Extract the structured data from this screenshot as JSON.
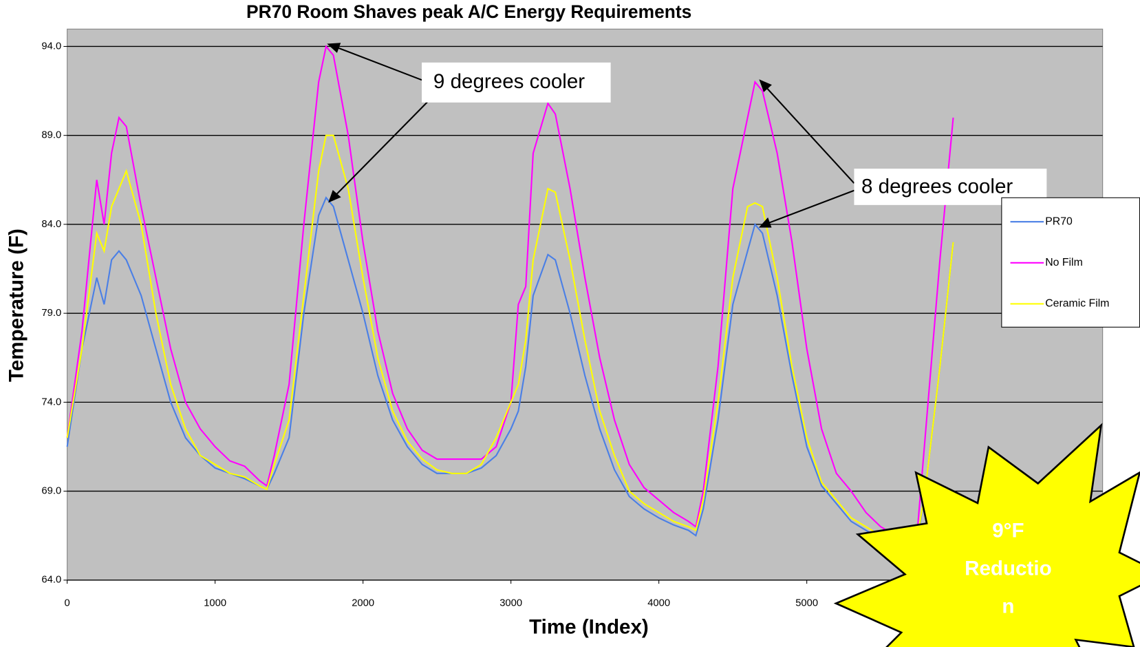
{
  "chart_data": {
    "type": "line",
    "title": "PR70 Room Shaves peak A/C Energy Requirements",
    "xlabel": "Time (Index)",
    "ylabel": "Temperature (F)",
    "x": [
      0,
      100,
      200,
      250,
      300,
      350,
      400,
      500,
      600,
      700,
      800,
      900,
      1000,
      1100,
      1200,
      1300,
      1350,
      1400,
      1500,
      1600,
      1700,
      1750,
      1800,
      1900,
      2000,
      2100,
      2200,
      2300,
      2400,
      2500,
      2600,
      2700,
      2800,
      2900,
      3000,
      3050,
      3100,
      3150,
      3250,
      3300,
      3400,
      3500,
      3600,
      3700,
      3800,
      3900,
      4000,
      4100,
      4200,
      4250,
      4300,
      4400,
      4500,
      4600,
      4650,
      4700,
      4800,
      4900,
      5000,
      5100,
      5200,
      5300,
      5400,
      5500,
      5600,
      5700,
      5750,
      5800,
      5900,
      5990
    ],
    "series": [
      {
        "name": "PR70",
        "color": "#4a7fe6",
        "values": [
          71.5,
          77,
          81,
          79.5,
          82,
          82.5,
          82,
          80,
          77,
          74,
          72,
          71,
          70.3,
          70,
          69.7,
          69.3,
          69.1,
          70,
          72,
          79,
          84.5,
          85.5,
          85,
          82,
          79,
          75.5,
          73,
          71.5,
          70.5,
          70,
          70,
          70,
          70.3,
          71,
          72.5,
          73.5,
          76,
          80,
          82.3,
          82,
          79,
          75.5,
          72.5,
          70.2,
          68.7,
          68,
          67.5,
          67.1,
          66.8,
          66.5,
          68,
          73,
          79.5,
          82.5,
          84,
          83.5,
          80,
          75.5,
          71.5,
          69.3,
          68.3,
          67.3,
          66.8,
          66.3,
          65.8,
          65.8,
          66.3,
          69,
          76,
          83
        ]
      },
      {
        "name": "No Film",
        "color": "#ff00ff",
        "values": [
          72,
          78,
          86.5,
          84,
          88,
          90,
          89.5,
          85,
          81,
          77,
          74,
          72.5,
          71.5,
          70.7,
          70.4,
          69.6,
          69.3,
          71,
          75,
          84,
          92,
          94,
          93.5,
          89,
          83,
          78,
          74.5,
          72.5,
          71.3,
          70.8,
          70.8,
          70.8,
          70.8,
          71.5,
          74,
          79.5,
          80.5,
          88,
          90.8,
          90.2,
          86,
          81,
          76.5,
          73,
          70.5,
          69.2,
          68.5,
          67.8,
          67.3,
          67,
          69,
          76,
          86,
          90,
          92,
          91.5,
          88,
          83,
          77,
          72.5,
          70,
          69,
          67.8,
          67,
          66.5,
          66.5,
          67,
          72,
          82,
          90
        ]
      },
      {
        "name": "Ceramic Film",
        "color": "#ffff00",
        "values": [
          72,
          77,
          83.5,
          82.5,
          85,
          86,
          87,
          84,
          79,
          75,
          72.5,
          71,
          70.5,
          70,
          69.8,
          69.3,
          69.1,
          70.5,
          73,
          80,
          87,
          89,
          89,
          86,
          81,
          76.5,
          73.5,
          71.8,
          70.8,
          70.2,
          70,
          70,
          70.5,
          72,
          74,
          75,
          77.5,
          82,
          86,
          85.8,
          82,
          77.5,
          73.5,
          71,
          69,
          68.3,
          67.8,
          67.3,
          67,
          66.8,
          68.5,
          74,
          81,
          85,
          85.2,
          85,
          81,
          76,
          72,
          69.5,
          68.5,
          67.5,
          67,
          66.5,
          66,
          66,
          66.5,
          69,
          76,
          83
        ]
      }
    ],
    "xlim": [
      0,
      7000
    ],
    "ylim": [
      64,
      95
    ],
    "xticks": [
      0,
      1000,
      2000,
      3000,
      4000,
      5000
    ],
    "yticks": [
      {
        "value": 64,
        "label": "64.0"
      },
      {
        "value": 69,
        "label": "69.0"
      },
      {
        "value": 74,
        "label": "74.0"
      },
      {
        "value": 79,
        "label": "79.0"
      },
      {
        "value": 84,
        "label": "84.0"
      },
      {
        "value": 89,
        "label": "89.0"
      },
      {
        "value": 94,
        "label": "94.0"
      }
    ],
    "grid": true,
    "legend": "right",
    "annotations": [
      "9 degrees cooler",
      "8 degrees cooler",
      "9°F Reduction"
    ]
  }
}
